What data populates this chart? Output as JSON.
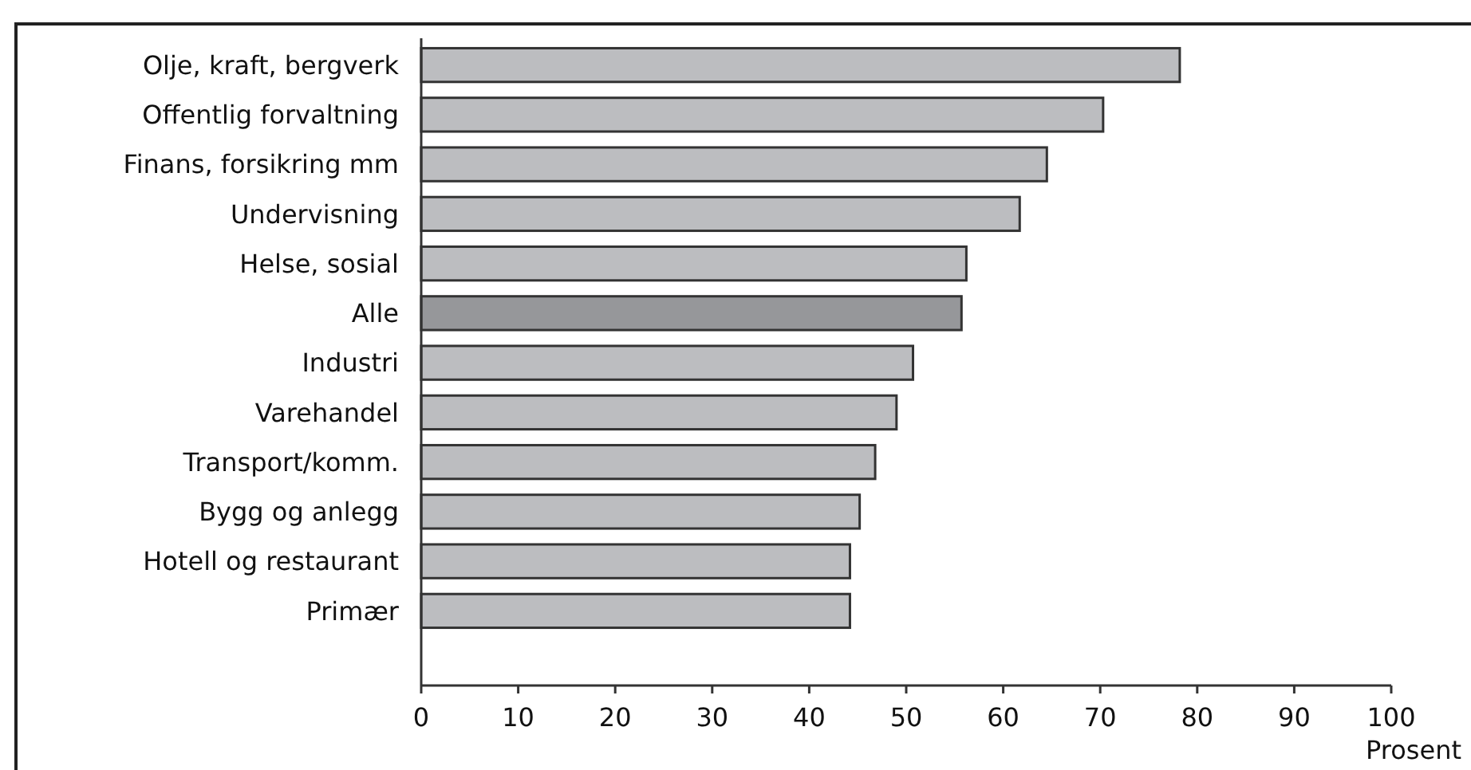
{
  "chart_data": {
    "type": "bar",
    "orientation": "horizontal",
    "categories": [
      "Olje, kraft, bergverk",
      "Offentlig forvaltning",
      "Finans, forsikring mm",
      "Undervisning",
      "Helse, sosial",
      "Alle",
      "Industri",
      "Varehandel",
      "Transport/komm.",
      "Bygg og anlegg",
      "Hotell og restaurant",
      "Primær"
    ],
    "values": [
      78.2,
      70.3,
      64.5,
      61.7,
      56.2,
      55.7,
      50.7,
      49.0,
      46.8,
      45.2,
      44.2,
      44.2
    ],
    "colors": [
      "#bcbdc0",
      "#bcbdc0",
      "#bcbdc0",
      "#bcbdc0",
      "#bcbdc0",
      "#96979a",
      "#bcbdc0",
      "#bcbdc0",
      "#bcbdc0",
      "#bcbdc0",
      "#bcbdc0",
      "#bcbdc0"
    ],
    "xlim": [
      0,
      100
    ],
    "xticks": [
      0,
      10,
      20,
      30,
      40,
      50,
      60,
      70,
      80,
      90,
      100
    ],
    "xlabel": "Prosent",
    "grid": false
  }
}
